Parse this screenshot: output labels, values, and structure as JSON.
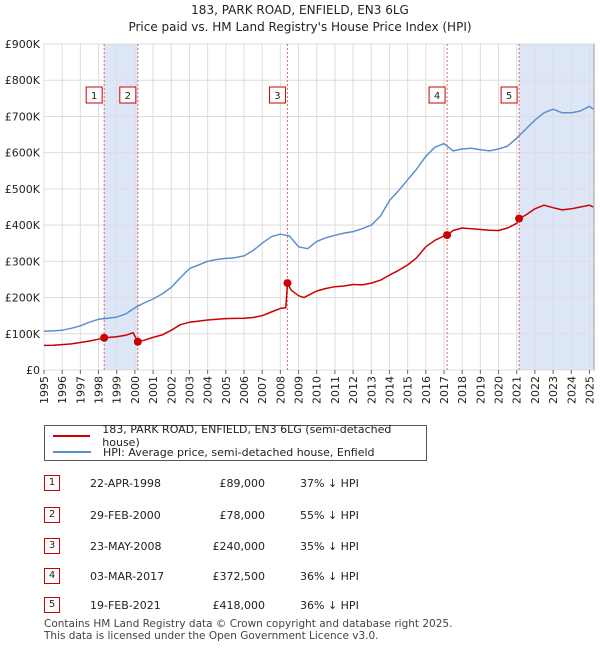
{
  "chart_data": {
    "type": "line",
    "title": "183, PARK ROAD, ENFIELD, EN3 6LG",
    "subtitle": "Price paid vs. HM Land Registry's House Price Index (HPI)",
    "xlabel": "",
    "ylabel": "",
    "xlim": [
      1995,
      2025.25
    ],
    "ylim": [
      0,
      900000
    ],
    "x_ticks": [
      "1995",
      "1996",
      "1997",
      "1998",
      "1999",
      "2000",
      "2001",
      "2002",
      "2003",
      "2004",
      "2005",
      "2006",
      "2007",
      "2008",
      "2009",
      "2010",
      "2011",
      "2012",
      "2013",
      "2014",
      "2015",
      "2016",
      "2017",
      "2018",
      "2019",
      "2020",
      "2021",
      "2022",
      "2023",
      "2024",
      "2025"
    ],
    "y_ticks": [
      {
        "value": 0,
        "label": "£0"
      },
      {
        "value": 100000,
        "label": "£100K"
      },
      {
        "value": 200000,
        "label": "£200K"
      },
      {
        "value": 300000,
        "label": "£300K"
      },
      {
        "value": 400000,
        "label": "£400K"
      },
      {
        "value": 500000,
        "label": "£500K"
      },
      {
        "value": 600000,
        "label": "£600K"
      },
      {
        "value": 700000,
        "label": "£700K"
      },
      {
        "value": 800000,
        "label": "£800K"
      },
      {
        "value": 900000,
        "label": "£900K"
      }
    ],
    "series": [
      {
        "name": "183, PARK ROAD, ENFIELD, EN3 6LG (semi-detached house)",
        "color": "#cc0000",
        "x": [
          1995.0,
          1995.5,
          1996.0,
          1996.5,
          1997.0,
          1997.5,
          1998.0,
          1998.31,
          1998.6,
          1999.0,
          1999.5,
          1999.9,
          2000.16,
          2000.5,
          2001.0,
          2001.5,
          2002.0,
          2002.5,
          2003.0,
          2003.5,
          2004.0,
          2004.5,
          2005.0,
          2005.5,
          2006.0,
          2006.5,
          2007.0,
          2007.5,
          2008.0,
          2008.3,
          2008.39,
          2008.6,
          2009.0,
          2009.3,
          2009.6,
          2010.0,
          2010.5,
          2011.0,
          2011.5,
          2012.0,
          2012.5,
          2013.0,
          2013.5,
          2014.0,
          2014.5,
          2015.0,
          2015.5,
          2016.0,
          2016.5,
          2017.0,
          2017.17,
          2017.5,
          2018.0,
          2018.5,
          2019.0,
          2019.5,
          2020.0,
          2020.5,
          2021.0,
          2021.13,
          2021.5,
          2022.0,
          2022.5,
          2023.0,
          2023.5,
          2024.0,
          2024.5,
          2025.0,
          2025.2
        ],
        "y": [
          68000,
          68500,
          70000,
          72000,
          76000,
          80000,
          85000,
          89000,
          90000,
          92000,
          96000,
          103000,
          78000,
          82000,
          90000,
          97000,
          110000,
          125000,
          132000,
          135000,
          138000,
          140000,
          142000,
          142500,
          143000,
          145000,
          150000,
          160000,
          170000,
          172000,
          240000,
          220000,
          205000,
          200000,
          208000,
          218000,
          225000,
          230000,
          232000,
          236000,
          235000,
          240000,
          248000,
          262000,
          275000,
          290000,
          310000,
          340000,
          358000,
          370000,
          372500,
          385000,
          392000,
          390000,
          388000,
          386000,
          385000,
          392000,
          405000,
          418000,
          428000,
          445000,
          455000,
          448000,
          442000,
          445000,
          450000,
          455000,
          450000
        ]
      },
      {
        "name": "HPI: Average price, semi-detached house, Enfield",
        "color": "#5b8fd0",
        "x": [
          1995.0,
          1995.5,
          1996.0,
          1996.5,
          1997.0,
          1997.5,
          1998.0,
          1998.5,
          1999.0,
          1999.5,
          2000.0,
          2000.5,
          2001.0,
          2001.5,
          2002.0,
          2002.5,
          2003.0,
          2003.5,
          2004.0,
          2004.5,
          2005.0,
          2005.5,
          2006.0,
          2006.5,
          2007.0,
          2007.5,
          2008.0,
          2008.5,
          2009.0,
          2009.5,
          2010.0,
          2010.5,
          2011.0,
          2011.5,
          2012.0,
          2012.5,
          2013.0,
          2013.5,
          2014.0,
          2014.5,
          2015.0,
          2015.5,
          2016.0,
          2016.5,
          2017.0,
          2017.5,
          2018.0,
          2018.5,
          2019.0,
          2019.5,
          2020.0,
          2020.5,
          2021.0,
          2021.5,
          2022.0,
          2022.5,
          2023.0,
          2023.5,
          2024.0,
          2024.5,
          2025.0,
          2025.2
        ],
        "y": [
          107000,
          108000,
          110000,
          115000,
          122000,
          132000,
          140000,
          143000,
          146000,
          155000,
          172000,
          185000,
          196000,
          210000,
          228000,
          255000,
          280000,
          290000,
          300000,
          305000,
          308000,
          310000,
          315000,
          330000,
          350000,
          368000,
          375000,
          370000,
          340000,
          335000,
          355000,
          365000,
          372000,
          378000,
          382000,
          390000,
          400000,
          425000,
          468000,
          495000,
          525000,
          555000,
          590000,
          615000,
          625000,
          605000,
          610000,
          612000,
          608000,
          605000,
          610000,
          618000,
          640000,
          665000,
          690000,
          710000,
          720000,
          710000,
          710000,
          715000,
          728000,
          720000
        ]
      }
    ],
    "sales": [
      {
        "num": "1",
        "x": 1998.31,
        "price": 89000
      },
      {
        "num": "2",
        "x": 2000.16,
        "price": 78000
      },
      {
        "num": "3",
        "x": 2008.39,
        "price": 240000
      },
      {
        "num": "4",
        "x": 2017.17,
        "price": 372500
      },
      {
        "num": "5",
        "x": 2021.13,
        "price": 418000
      }
    ],
    "band_color": "#dde6f7",
    "legend_placement": "below"
  },
  "legend": {
    "property_label": "183, PARK ROAD, ENFIELD, EN3 6LG (semi-detached house)",
    "hpi_label": "HPI: Average price, semi-detached house, Enfield"
  },
  "table": [
    {
      "num": "1",
      "date": "22-APR-1998",
      "price": "£89,000",
      "hpi": "37% ↓ HPI"
    },
    {
      "num": "2",
      "date": "29-FEB-2000",
      "price": "£78,000",
      "hpi": "55% ↓ HPI"
    },
    {
      "num": "3",
      "date": "23-MAY-2008",
      "price": "£240,000",
      "hpi": "35% ↓ HPI"
    },
    {
      "num": "4",
      "date": "03-MAR-2017",
      "price": "£372,500",
      "hpi": "36% ↓ HPI"
    },
    {
      "num": "5",
      "date": "19-FEB-2021",
      "price": "£418,000",
      "hpi": "36% ↓ HPI"
    }
  ],
  "footer": {
    "line1": "Contains HM Land Registry data © Crown copyright and database right 2025.",
    "line2": "This data is licensed under the Open Government Licence v3.0."
  }
}
